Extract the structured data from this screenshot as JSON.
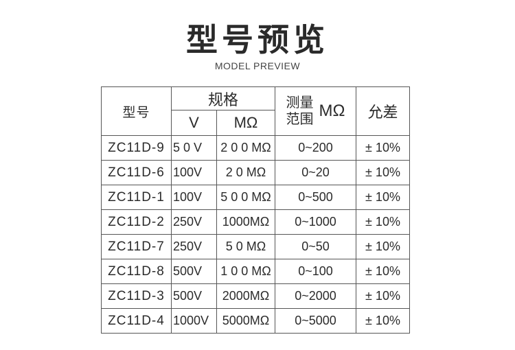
{
  "title": "型号预览",
  "subtitle": "MODEL PREVIEW",
  "table": {
    "headers": {
      "model": "型号",
      "spec": "规格",
      "voltage": "V",
      "resistance": "MΩ",
      "range_line1": "测量",
      "range_line2": "范围",
      "range_unit": "MΩ",
      "tolerance": "允差"
    },
    "rows": [
      {
        "model": "ZC11D-9",
        "voltage": "5 0 V",
        "resistance": "2 0 0 MΩ",
        "range": "0~200",
        "tolerance": "± 10%"
      },
      {
        "model": "ZC11D-6",
        "voltage": "100V",
        "resistance": "2  0  MΩ",
        "range": "0~20",
        "tolerance": "± 10%"
      },
      {
        "model": "ZC11D-1",
        "voltage": "100V",
        "resistance": "5 0 0 MΩ",
        "range": "0~500",
        "tolerance": "± 10%"
      },
      {
        "model": "ZC11D-2",
        "voltage": "250V",
        "resistance": "1000MΩ",
        "range": "0~1000",
        "tolerance": "± 10%"
      },
      {
        "model": "ZC11D-7",
        "voltage": "250V",
        "resistance": "5  0  MΩ",
        "range": "0~50",
        "tolerance": "± 10%"
      },
      {
        "model": "ZC11D-8",
        "voltage": "500V",
        "resistance": "1 0 0 MΩ",
        "range": "0~100",
        "tolerance": "± 10%"
      },
      {
        "model": "ZC11D-3",
        "voltage": "500V",
        "resistance": "2000MΩ",
        "range": "0~2000",
        "tolerance": "± 10%"
      },
      {
        "model": "ZC11D-4",
        "voltage": "1000V",
        "resistance": "5000MΩ",
        "range": "0~5000",
        "tolerance": "± 10%"
      }
    ]
  }
}
